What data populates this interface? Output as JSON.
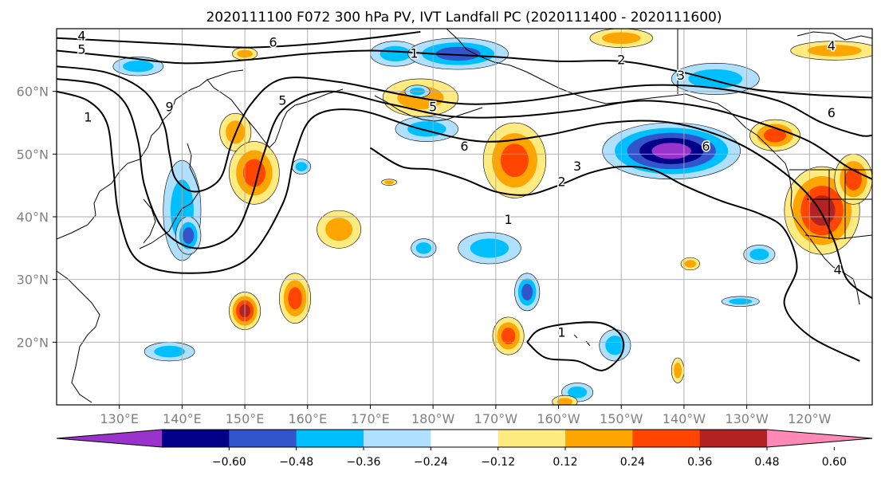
{
  "title": "2020111100 F072 300 hPa PV, IVT Landfall PC (2020111400 - 2020111600)",
  "map": {
    "lon_range": [
      120,
      250
    ],
    "lat_range": [
      10,
      70
    ],
    "lon_ticks": [
      {
        "value": 130,
        "label": "130°E"
      },
      {
        "value": 140,
        "label": "140°E"
      },
      {
        "value": 150,
        "label": "150°E"
      },
      {
        "value": 160,
        "label": "160°E"
      },
      {
        "value": 170,
        "label": "170°E"
      },
      {
        "value": 180,
        "label": "180°W"
      },
      {
        "value": 190,
        "label": "170°W"
      },
      {
        "value": 200,
        "label": "160°W"
      },
      {
        "value": 210,
        "label": "150°W"
      },
      {
        "value": 220,
        "label": "140°W"
      },
      {
        "value": 230,
        "label": "130°W"
      },
      {
        "value": 240,
        "label": "120°W"
      }
    ],
    "lat_ticks": [
      {
        "value": 20,
        "label": "20°N"
      },
      {
        "value": 30,
        "label": "30°N"
      },
      {
        "value": 40,
        "label": "40°N"
      },
      {
        "value": 50,
        "label": "50°N"
      },
      {
        "value": 60,
        "label": "60°N"
      }
    ],
    "gridlines": true
  },
  "colorbar": {
    "colors": [
      "#9933cc",
      "#000088",
      "#3355cc",
      "#00bfff",
      "#b0e0ff",
      "#ffffff",
      "#ffeb80",
      "#ffa500",
      "#ff4500",
      "#b22222",
      "#ff88b4"
    ],
    "tick_labels": [
      "−0.60",
      "−0.48",
      "−0.36",
      "−0.24",
      "−0.12",
      "0.12",
      "0.24",
      "0.36",
      "0.48",
      "0.60"
    ]
  },
  "contour_labels": [
    {
      "text": "4",
      "lon": 124,
      "lat": 68.8
    },
    {
      "text": "5",
      "lon": 124,
      "lat": 66.6
    },
    {
      "text": "6",
      "lon": 154.5,
      "lat": 67.8
    },
    {
      "text": "1",
      "lon": 125,
      "lat": 55.8
    },
    {
      "text": "9",
      "lon": 138,
      "lat": 57.5
    },
    {
      "text": "5",
      "lon": 156,
      "lat": 58.5
    },
    {
      "text": "1",
      "lon": 177,
      "lat": 66
    },
    {
      "text": "5",
      "lon": 180,
      "lat": 57.5
    },
    {
      "text": "6",
      "lon": 185,
      "lat": 51.2
    },
    {
      "text": "2",
      "lon": 210,
      "lat": 65
    },
    {
      "text": "3",
      "lon": 219.5,
      "lat": 62.5
    },
    {
      "text": "4",
      "lon": 243.5,
      "lat": 67.2
    },
    {
      "text": "6",
      "lon": 243.5,
      "lat": 56.5
    },
    {
      "text": "6",
      "lon": 223.5,
      "lat": 51.2
    },
    {
      "text": "3",
      "lon": 203,
      "lat": 48
    },
    {
      "text": "2",
      "lon": 200.5,
      "lat": 45.5
    },
    {
      "text": "1",
      "lon": 192,
      "lat": 39.5
    },
    {
      "text": "4",
      "lon": 244.5,
      "lat": 31.5
    },
    {
      "text": "1",
      "lon": 200.5,
      "lat": 21.5
    }
  ],
  "pv_contours": [
    [
      [
        120,
        68.5
      ],
      [
        130,
        68
      ],
      [
        140,
        67.5
      ],
      [
        150,
        67
      ],
      [
        160,
        67.5
      ],
      [
        170,
        68.5
      ],
      [
        178,
        69.5
      ]
    ],
    [
      [
        120,
        66.5
      ],
      [
        130,
        65.5
      ],
      [
        140,
        64.5
      ],
      [
        150,
        65
      ],
      [
        160,
        66
      ],
      [
        170,
        66.5
      ],
      [
        180,
        66
      ],
      [
        190,
        65.5
      ],
      [
        200,
        64.8
      ],
      [
        210,
        64.8
      ],
      [
        220,
        63
      ],
      [
        230,
        60.5
      ],
      [
        240,
        59.5
      ],
      [
        250,
        59
      ]
    ],
    [
      [
        120,
        64
      ],
      [
        128,
        63
      ],
      [
        134,
        60
      ],
      [
        137,
        55
      ],
      [
        138,
        50
      ],
      [
        139,
        46
      ],
      [
        142,
        44
      ],
      [
        146,
        46
      ],
      [
        148,
        52
      ],
      [
        151,
        58
      ],
      [
        156,
        62
      ],
      [
        165,
        61.5
      ],
      [
        175,
        59.5
      ],
      [
        185,
        58
      ],
      [
        195,
        58.5
      ],
      [
        205,
        60
      ],
      [
        215,
        61
      ],
      [
        225,
        60.5
      ],
      [
        235,
        58.5
      ],
      [
        242,
        55
      ],
      [
        248,
        53
      ],
      [
        250,
        53
      ]
    ],
    [
      [
        120,
        62
      ],
      [
        127,
        61
      ],
      [
        131,
        58
      ],
      [
        133,
        52
      ],
      [
        134,
        45
      ],
      [
        137,
        38
      ],
      [
        142,
        35
      ],
      [
        148,
        37
      ],
      [
        151,
        43
      ],
      [
        153,
        50
      ],
      [
        156,
        57
      ],
      [
        163,
        60
      ],
      [
        173,
        58
      ],
      [
        183,
        56
      ],
      [
        193,
        56
      ],
      [
        203,
        57
      ],
      [
        213,
        58.5
      ],
      [
        223,
        57.5
      ],
      [
        232,
        55
      ],
      [
        240,
        52
      ],
      [
        246,
        48
      ],
      [
        250,
        46
      ]
    ],
    [
      [
        120,
        60
      ],
      [
        125,
        58.5
      ],
      [
        128,
        55
      ],
      [
        129,
        48
      ],
      [
        130,
        40
      ],
      [
        133,
        33
      ],
      [
        141,
        31
      ],
      [
        150,
        33
      ],
      [
        156,
        42
      ],
      [
        158,
        50
      ],
      [
        161,
        56
      ],
      [
        168,
        57
      ],
      [
        178,
        54
      ],
      [
        188,
        52
      ],
      [
        198,
        53
      ],
      [
        208,
        55
      ],
      [
        218,
        55
      ],
      [
        228,
        52
      ],
      [
        236,
        47
      ],
      [
        241,
        42
      ],
      [
        244,
        36
      ],
      [
        246,
        30
      ],
      [
        250,
        27
      ]
    ],
    [
      [
        170,
        51
      ],
      [
        175,
        48
      ],
      [
        180,
        47.5
      ],
      [
        185,
        46
      ],
      [
        190,
        44
      ],
      [
        195,
        43.5
      ],
      [
        200,
        45
      ],
      [
        205,
        47
      ],
      [
        210,
        48
      ],
      [
        215,
        47.5
      ],
      [
        220,
        45
      ],
      [
        226,
        42.5
      ],
      [
        232,
        40.5
      ],
      [
        236,
        38
      ],
      [
        238,
        32
      ],
      [
        236,
        26
      ],
      [
        240,
        21
      ],
      [
        248,
        17
      ]
    ],
    [
      [
        195,
        20
      ],
      [
        197,
        22
      ],
      [
        202,
        23
      ],
      [
        207,
        23
      ],
      [
        210,
        21
      ],
      [
        210,
        18
      ],
      [
        207,
        15.5
      ],
      [
        203,
        17
      ],
      [
        198,
        17.5
      ],
      [
        195,
        20
      ]
    ]
  ],
  "ivt_blobs": [
    {
      "level": 0.25,
      "sign": -1,
      "lon": 133,
      "lat": 64,
      "rx": 4,
      "ry": 1.5
    },
    {
      "level": 0.3,
      "sign": -1,
      "lon": 140,
      "lat": 41,
      "rx": 3,
      "ry": 8
    },
    {
      "level": 0.4,
      "sign": -1,
      "lon": 141,
      "lat": 37,
      "rx": 2,
      "ry": 3
    },
    {
      "level": 0.3,
      "sign": 1,
      "lon": 148.5,
      "lat": 53.5,
      "rx": 2.5,
      "ry": 3
    },
    {
      "level": 0.4,
      "sign": 1,
      "lon": 151.5,
      "lat": 47,
      "rx": 4,
      "ry": 5
    },
    {
      "level": 0.36,
      "sign": 1,
      "lon": 165,
      "lat": 38,
      "rx": 3.5,
      "ry": 3
    },
    {
      "level": 0.5,
      "sign": 1,
      "lon": 150,
      "lat": 25,
      "rx": 2.5,
      "ry": 3
    },
    {
      "level": 0.38,
      "sign": 1,
      "lon": 158,
      "lat": 27,
      "rx": 2.5,
      "ry": 4
    },
    {
      "level": 0.25,
      "sign": -1,
      "lon": 138,
      "lat": 18.5,
      "rx": 4,
      "ry": 1.5
    },
    {
      "level": 0.3,
      "sign": -1,
      "lon": 174,
      "lat": 66,
      "rx": 4,
      "ry": 2
    },
    {
      "level": 0.4,
      "sign": -1,
      "lon": 184,
      "lat": 66,
      "rx": 8,
      "ry": 2.5
    },
    {
      "level": 0.36,
      "sign": 1,
      "lon": 178,
      "lat": 59,
      "rx": 6,
      "ry": 3
    },
    {
      "level": 0.25,
      "sign": -1,
      "lon": 179,
      "lat": 54,
      "rx": 5,
      "ry": 2
    },
    {
      "level": 0.42,
      "sign": 1,
      "lon": 193,
      "lat": 49,
      "rx": 5,
      "ry": 6
    },
    {
      "level": 0.3,
      "sign": -1,
      "lon": 189,
      "lat": 35,
      "rx": 5,
      "ry": 2.5
    },
    {
      "level": 0.25,
      "sign": -1,
      "lon": 178.5,
      "lat": 35,
      "rx": 2,
      "ry": 1.5
    },
    {
      "level": 0.4,
      "sign": -1,
      "lon": 195,
      "lat": 28,
      "rx": 2,
      "ry": 3
    },
    {
      "level": 0.4,
      "sign": 1,
      "lon": 192,
      "lat": 21,
      "rx": 2.5,
      "ry": 3
    },
    {
      "level": 0.3,
      "sign": -1,
      "lon": 209,
      "lat": 19.5,
      "rx": 2.5,
      "ry": 2.5
    },
    {
      "level": 0.3,
      "sign": -1,
      "lon": 203,
      "lat": 12,
      "rx": 2.5,
      "ry": 1.5
    },
    {
      "level": 0.3,
      "sign": 1,
      "lon": 219,
      "lat": 15.5,
      "rx": 1,
      "ry": 2
    },
    {
      "level": 0.3,
      "sign": -1,
      "lon": 229,
      "lat": 26.5,
      "rx": 3,
      "ry": 0.8
    },
    {
      "level": 0.25,
      "sign": -1,
      "lon": 177.5,
      "lat": 60,
      "rx": 2,
      "ry": 1
    },
    {
      "level": 0.36,
      "sign": 1,
      "lon": 210,
      "lat": 68.5,
      "rx": 5,
      "ry": 1.5
    },
    {
      "level": 0.25,
      "sign": -1,
      "lon": 225,
      "lat": 62,
      "rx": 7,
      "ry": 2.5
    },
    {
      "level": 0.36,
      "sign": 1,
      "lon": 244,
      "lat": 66.5,
      "rx": 7,
      "ry": 1.5
    },
    {
      "level": 0.62,
      "sign": -1,
      "lon": 218,
      "lat": 50.5,
      "rx": 11,
      "ry": 4.5
    },
    {
      "level": 0.4,
      "sign": 1,
      "lon": 234.5,
      "lat": 53,
      "rx": 4,
      "ry": 2.5
    },
    {
      "level": 0.55,
      "sign": 1,
      "lon": 242,
      "lat": 41,
      "rx": 6,
      "ry": 7
    },
    {
      "level": 0.4,
      "sign": 1,
      "lon": 247,
      "lat": 46,
      "rx": 3,
      "ry": 4
    },
    {
      "level": 0.3,
      "sign": -1,
      "lon": 232,
      "lat": 34,
      "rx": 2.5,
      "ry": 1.5
    },
    {
      "level": 0.3,
      "sign": 1,
      "lon": 221,
      "lat": 32.5,
      "rx": 1.5,
      "ry": 1
    },
    {
      "level": 0.25,
      "sign": -1,
      "lon": 159,
      "lat": 48,
      "rx": 1.5,
      "ry": 1.2
    },
    {
      "level": 0.25,
      "sign": 1,
      "lon": 173,
      "lat": 45.5,
      "rx": 1.2,
      "ry": 0.5
    },
    {
      "level": 0.25,
      "sign": 1,
      "lon": 150,
      "lat": 66,
      "rx": 2,
      "ry": 1
    },
    {
      "level": 0.3,
      "sign": 1,
      "lon": 201,
      "lat": 10.5,
      "rx": 2,
      "ry": 1
    }
  ]
}
